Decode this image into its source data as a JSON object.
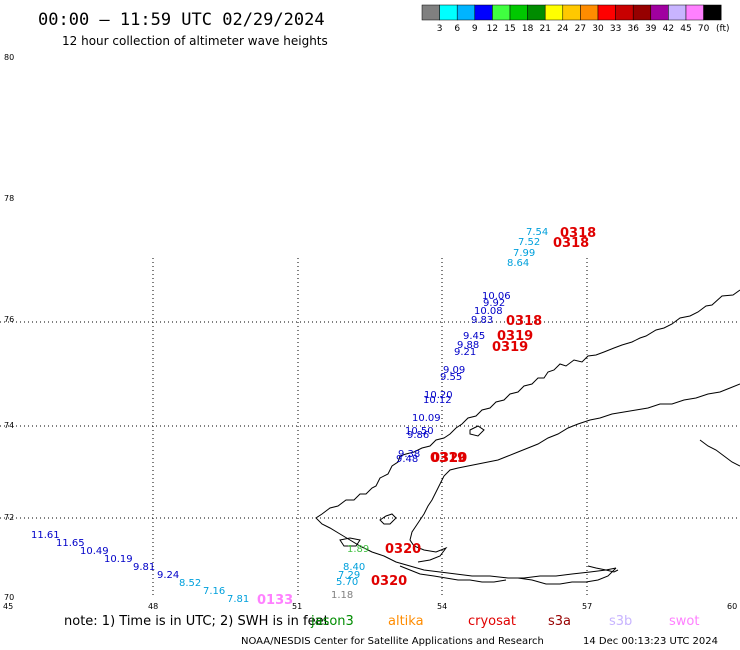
{
  "header": {
    "title": "00:00 – 11:59 UTC 02/29/2024",
    "subtitle": "12 hour collection of altimeter wave heights"
  },
  "color_bar": {
    "colors": [
      "#808080",
      "#00ffff",
      "#00b4ff",
      "#0000ff",
      "#40ff40",
      "#00c800",
      "#008c00",
      "#ffff00",
      "#ffc800",
      "#ff8c00",
      "#ff0000",
      "#c80000",
      "#960000",
      "#a000a0",
      "#c8b4ff",
      "#ff80ff",
      "#000000"
    ],
    "labels": [
      "3",
      "6",
      "9",
      "12",
      "15",
      "18",
      "21",
      "24",
      "27",
      "30",
      "33",
      "36",
      "39",
      "42",
      "45",
      "70"
    ],
    "unit": "(ft)"
  },
  "axes": {
    "lat_labels": [
      "80",
      "78",
      "76",
      "74",
      "72",
      "70"
    ],
    "lon_labels": [
      "45",
      "48",
      "51",
      "54",
      "57",
      "60"
    ]
  },
  "readings": [
    {
      "text": "11.61",
      "color": "#0000c8"
    },
    {
      "text": "11.65",
      "color": "#0000c8"
    },
    {
      "text": "10.49",
      "color": "#0000c8"
    },
    {
      "text": "10.19",
      "color": "#0000c8"
    },
    {
      "text": "9.81",
      "color": "#0000c8"
    },
    {
      "text": "9.24",
      "color": "#0000c8"
    },
    {
      "text": "8.52",
      "color": "#00a0dc"
    },
    {
      "text": "7.16",
      "color": "#00a0dc"
    },
    {
      "text": "7.81",
      "color": "#00a0dc"
    },
    {
      "text": "7.54",
      "color": "#00a0dc"
    },
    {
      "text": "7.52",
      "color": "#00a0dc"
    },
    {
      "text": "7.99",
      "color": "#00a0dc"
    },
    {
      "text": "8.64",
      "color": "#00a0dc"
    },
    {
      "text": "10.06",
      "color": "#0000c8"
    },
    {
      "text": "9.92",
      "color": "#0000c8"
    },
    {
      "text": "10.08",
      "color": "#0000c8"
    },
    {
      "text": "9.83",
      "color": "#0000c8"
    },
    {
      "text": "9.45",
      "color": "#0000c8"
    },
    {
      "text": "9.88",
      "color": "#0000c8"
    },
    {
      "text": "9.21",
      "color": "#0000c8"
    },
    {
      "text": "9.09",
      "color": "#0000c8"
    },
    {
      "text": "9.55",
      "color": "#0000c8"
    },
    {
      "text": "10.20",
      "color": "#0000c8"
    },
    {
      "text": "10.12",
      "color": "#0000c8"
    },
    {
      "text": "10.09",
      "color": "#0000c8"
    },
    {
      "text": "10.50",
      "color": "#0000c8"
    },
    {
      "text": "9.86",
      "color": "#0000c8"
    },
    {
      "text": "9.38",
      "color": "#0000c8"
    },
    {
      "text": "9.48",
      "color": "#0000c8"
    },
    {
      "text": "8.40",
      "color": "#00a0dc"
    },
    {
      "text": "7.29",
      "color": "#00a0dc"
    },
    {
      "text": "5.70",
      "color": "#00a0dc"
    },
    {
      "text": "1.18",
      "color": "#808080"
    },
    {
      "text": "1.89",
      "color": "#40c040"
    }
  ],
  "pass_labels": [
    {
      "text": "0318",
      "color": "#e00000"
    },
    {
      "text": "0318",
      "color": "#e00000"
    },
    {
      "text": "0318",
      "color": "#e00000"
    },
    {
      "text": "0319",
      "color": "#e00000"
    },
    {
      "text": "0319",
      "color": "#e00000"
    },
    {
      "text": "0319",
      "color": "#e00000"
    },
    {
      "text": "0320",
      "color": "#e00000"
    },
    {
      "text": "0320",
      "color": "#e00000"
    },
    {
      "text": "0320",
      "color": "#e00000"
    },
    {
      "text": "0133",
      "color": "#ff80ff"
    }
  ],
  "footer": {
    "note": "note:  1) Time is in UTC;  2) SWH is in feet",
    "satellites": [
      {
        "name": "jason3",
        "color": "#008c00"
      },
      {
        "name": "altika",
        "color": "#ff8c00"
      },
      {
        "name": "cryosat",
        "color": "#e00000"
      },
      {
        "name": "s3a",
        "color": "#960000"
      },
      {
        "name": "s3b",
        "color": "#c8b4ff"
      },
      {
        "name": "swot",
        "color": "#ff80ff"
      }
    ],
    "credit": "NOAA/NESDIS Center for Satellite Applications and Research",
    "timestamp": "14 Dec 00:13:23 UTC 2024"
  }
}
